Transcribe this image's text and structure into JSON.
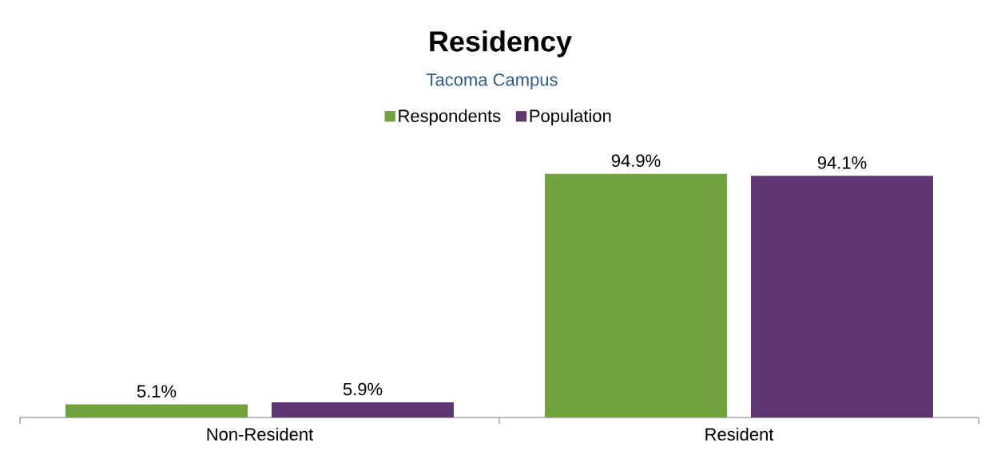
{
  "chart_data": {
    "type": "bar",
    "title": "Residency",
    "subtitle": "Tacoma Campus",
    "categories": [
      "Non-Resident",
      "Resident"
    ],
    "series": [
      {
        "name": "Respondents",
        "color": "#70a23f",
        "values": [
          5.1,
          94.9
        ],
        "value_labels": [
          "5.1%",
          "94.9%"
        ]
      },
      {
        "name": "Population",
        "color": "#5e3773",
        "values": [
          5.9,
          94.1
        ],
        "value_labels": [
          "5.9%",
          "94.1%"
        ]
      }
    ],
    "legend": "top"
  }
}
